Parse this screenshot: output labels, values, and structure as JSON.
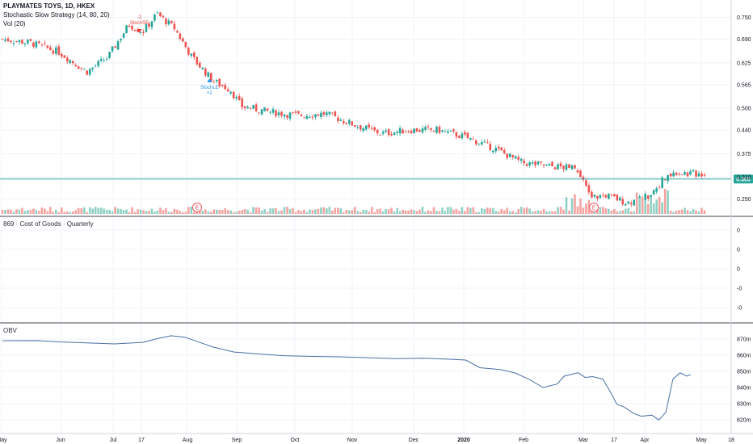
{
  "header": {
    "symbol_title": "PLAYMATES TOYS, 1D, HKEX",
    "strategy_label": "Stochastic Slow Strategy (14, 80, 20)",
    "volume_label": "Vol (20)"
  },
  "cog_pane": {
    "label": "869 · Cost of Goods · Quarterly",
    "ticks": [
      "0",
      "0",
      "0",
      "-0",
      "-0"
    ]
  },
  "obv_pane": {
    "label": "OBV",
    "ticks": [
      "870m",
      "860m",
      "850m",
      "840m",
      "830m",
      "820m"
    ]
  },
  "colors": {
    "up": "#26a69a",
    "down": "#ef5350",
    "vol_up": "#8fd1c4",
    "vol_down": "#f5a3a0",
    "obv_line": "#4a6fa5",
    "price_line": "#26a69a",
    "signal_short": "#e53935",
    "signal_long": "#2196f3"
  },
  "chart_data": [
    {
      "type": "candlestick",
      "title": "PLAYMATES TOYS, 1D, HKEX",
      "x_labels": [
        "May",
        "Jun",
        "Jul",
        "17",
        "Aug",
        "Sep",
        "Oct",
        "Nov",
        "Dec",
        "2020",
        "Feb",
        "Mar",
        "17",
        "Apr",
        "May",
        "18"
      ],
      "y_ticks": [
        "0.750",
        "0.690",
        "0.625",
        "0.565",
        "0.500",
        "0.440",
        "0.375",
        "0.310",
        "0.250"
      ],
      "y_range": [
        0.22,
        0.78
      ],
      "last_price": "0.305",
      "close_path": [
        [
          0,
          0.69
        ],
        [
          0.04,
          0.68
        ],
        [
          0.08,
          0.655
        ],
        [
          0.12,
          0.6
        ],
        [
          0.15,
          0.64
        ],
        [
          0.18,
          0.73
        ],
        [
          0.2,
          0.71
        ],
        [
          0.22,
          0.76
        ],
        [
          0.245,
          0.72
        ],
        [
          0.27,
          0.64
        ],
        [
          0.3,
          0.575
        ],
        [
          0.325,
          0.55
        ],
        [
          0.34,
          0.505
        ],
        [
          0.38,
          0.49
        ],
        [
          0.42,
          0.48
        ],
        [
          0.46,
          0.485
        ],
        [
          0.5,
          0.455
        ],
        [
          0.54,
          0.43
        ],
        [
          0.58,
          0.44
        ],
        [
          0.62,
          0.44
        ],
        [
          0.66,
          0.42
        ],
        [
          0.7,
          0.39
        ],
        [
          0.74,
          0.35
        ],
        [
          0.78,
          0.34
        ],
        [
          0.815,
          0.335
        ],
        [
          0.825,
          0.3
        ],
        [
          0.84,
          0.255
        ],
        [
          0.86,
          0.26
        ],
        [
          0.89,
          0.24
        ],
        [
          0.92,
          0.26
        ],
        [
          0.94,
          0.3
        ],
        [
          0.96,
          0.325
        ],
        [
          0.975,
          0.32
        ]
      ],
      "signals": [
        {
          "label": "StochSE",
          "count": "-2",
          "kind": "short",
          "at": 0.195
        },
        {
          "label": "StochLE",
          "count": "+2",
          "kind": "long",
          "at": 0.295
        }
      ],
      "earnings_markers": [
        "E",
        "E"
      ]
    },
    {
      "type": "line",
      "title": "OBV",
      "y_ticks": [
        "870m",
        "860m",
        "850m",
        "840m",
        "830m",
        "820m"
      ],
      "y_range": [
        815,
        875
      ],
      "series": [
        {
          "values": [
            [
              0,
              869
            ],
            [
              0.05,
              869
            ],
            [
              0.08,
              868
            ],
            [
              0.12,
              867.5
            ],
            [
              0.16,
              867
            ],
            [
              0.2,
              868
            ],
            [
              0.22,
              870
            ],
            [
              0.24,
              872
            ],
            [
              0.26,
              871
            ],
            [
              0.28,
              868
            ],
            [
              0.3,
              865
            ],
            [
              0.33,
              862
            ],
            [
              0.37,
              860.5
            ],
            [
              0.4,
              860
            ],
            [
              0.44,
              859.5
            ],
            [
              0.48,
              859
            ],
            [
              0.52,
              858.5
            ],
            [
              0.56,
              858
            ],
            [
              0.6,
              858
            ],
            [
              0.64,
              857.5
            ],
            [
              0.66,
              857
            ],
            [
              0.68,
              852
            ],
            [
              0.71,
              851
            ],
            [
              0.73,
              849
            ],
            [
              0.75,
              845
            ],
            [
              0.77,
              840
            ],
            [
              0.79,
              842
            ],
            [
              0.8,
              847
            ],
            [
              0.82,
              849
            ],
            [
              0.83,
              846
            ],
            [
              0.84,
              847
            ],
            [
              0.855,
              845
            ],
            [
              0.865,
              838
            ],
            [
              0.875,
              830
            ],
            [
              0.885,
              828
            ],
            [
              0.9,
              824
            ],
            [
              0.91,
              822
            ],
            [
              0.925,
              823
            ],
            [
              0.935,
              820
            ],
            [
              0.945,
              825
            ],
            [
              0.955,
              845
            ],
            [
              0.965,
              849
            ],
            [
              0.975,
              847
            ],
            [
              0.98,
              848
            ]
          ]
        }
      ]
    }
  ]
}
